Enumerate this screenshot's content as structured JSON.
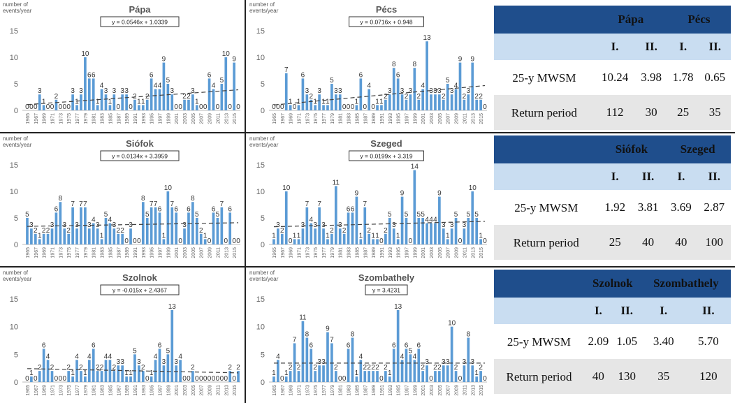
{
  "years": [
    1965,
    1966,
    1967,
    1968,
    1969,
    1970,
    1971,
    1972,
    1973,
    1974,
    1975,
    1976,
    1977,
    1978,
    1979,
    1980,
    1981,
    1982,
    1983,
    1984,
    1985,
    1986,
    1987,
    1988,
    1989,
    1990,
    1991,
    1992,
    1993,
    1994,
    1995,
    1996,
    1997,
    1998,
    1999,
    2000,
    2001,
    2002,
    2003,
    2004,
    2005,
    2006,
    2007,
    2008,
    2009,
    2010,
    2011,
    2012,
    2013,
    2014,
    2015,
    2016
  ],
  "chart_data": [
    {
      "type": "bar",
      "title": "Pápa",
      "ylabel": "number of events/year",
      "trend_label": "y = 0.0546x + 1.0339",
      "trend": {
        "slope": 0.0546,
        "intercept": 1.0339
      },
      "ylim": [
        0,
        15
      ],
      "yticks": [
        0,
        5,
        10,
        15
      ],
      "xtick_step": 2,
      "values": [
        0,
        0,
        0,
        3,
        1,
        0,
        0,
        2,
        0,
        0,
        0,
        3,
        1,
        3,
        10,
        6,
        6,
        1,
        4,
        3,
        1,
        3,
        0,
        3,
        3,
        0,
        2,
        1,
        1,
        2,
        6,
        4,
        4,
        9,
        5,
        3,
        0,
        0,
        2,
        2,
        3,
        1,
        0,
        0,
        6,
        4,
        0,
        5,
        10,
        0,
        9,
        0
      ]
    },
    {
      "type": "bar",
      "title": "Pécs",
      "ylabel": "number of events/year",
      "trend_label": "y = 0.0716x + 0.948",
      "trend": {
        "slope": 0.0716,
        "intercept": 0.948
      },
      "ylim": [
        0,
        15
      ],
      "yticks": [
        0,
        5,
        10,
        15
      ],
      "xtick_step": 2,
      "values": [
        0,
        0,
        0,
        7,
        1,
        0,
        1,
        6,
        3,
        2,
        1,
        3,
        1,
        1,
        5,
        3,
        3,
        0,
        0,
        0,
        1,
        6,
        0,
        4,
        0,
        1,
        1,
        2,
        3,
        8,
        6,
        3,
        2,
        3,
        8,
        2,
        4,
        13,
        3,
        3,
        3,
        2,
        5,
        3,
        4,
        9,
        2,
        3,
        9,
        2,
        2,
        0
      ]
    },
    {
      "type": "bar",
      "title": "Siófok",
      "ylabel": "number of events/year",
      "trend_label": "y = 0.0134x + 3.3959",
      "trend": {
        "slope": 0.0134,
        "intercept": 3.3959
      },
      "ylim": [
        0,
        15
      ],
      "yticks": [
        0,
        5,
        10,
        15
      ],
      "xtick_step": 2,
      "values": [
        5,
        3,
        2,
        1,
        2,
        2,
        3,
        6,
        8,
        3,
        2,
        7,
        3,
        7,
        7,
        3,
        4,
        3,
        1,
        5,
        4,
        3,
        2,
        2,
        0,
        3,
        0,
        0,
        8,
        5,
        7,
        7,
        6,
        1,
        10,
        7,
        6,
        0,
        3,
        6,
        8,
        5,
        2,
        1,
        0,
        6,
        5,
        7,
        0,
        6,
        0,
        0
      ]
    },
    {
      "type": "bar",
      "title": "Szeged",
      "ylabel": "number of events/year",
      "trend_label": "y = 0.0199x + 3.319",
      "trend": {
        "slope": 0.0199,
        "intercept": 3.319
      },
      "ylim": [
        0,
        15
      ],
      "yticks": [
        0,
        5,
        10,
        15
      ],
      "xtick_step": 2,
      "values": [
        1,
        3,
        2,
        10,
        0,
        1,
        1,
        3,
        7,
        4,
        3,
        7,
        3,
        1,
        2,
        11,
        3,
        2,
        6,
        6,
        9,
        1,
        7,
        2,
        1,
        1,
        0,
        2,
        5,
        3,
        1,
        9,
        5,
        0,
        14,
        5,
        5,
        4,
        4,
        4,
        9,
        3,
        1,
        3,
        5,
        0,
        3,
        5,
        10,
        5,
        1,
        0
      ]
    },
    {
      "type": "bar",
      "title": "Szolnok",
      "ylabel": "number of events/year",
      "trend_label": "y = -0.015x + 2.4367",
      "trend": {
        "slope": -0.015,
        "intercept": 2.4367
      },
      "ylim": [
        0,
        15
      ],
      "yticks": [
        0,
        5,
        10,
        15
      ],
      "xtick_step": 2,
      "values": [
        0,
        1,
        0,
        2,
        6,
        4,
        2,
        0,
        0,
        0,
        2,
        1,
        4,
        2,
        1,
        4,
        6,
        2,
        2,
        4,
        4,
        2,
        3,
        3,
        1,
        1,
        5,
        3,
        2,
        0,
        1,
        4,
        6,
        3,
        5,
        13,
        3,
        4,
        0,
        0,
        2,
        0,
        0,
        0,
        0,
        0,
        0,
        0,
        0,
        2,
        0,
        2
      ]
    },
    {
      "type": "bar",
      "title": "Szombathely",
      "ylabel": "number of events/year",
      "trend_label": "y = 3.4231",
      "trend": {
        "slope": 0,
        "intercept": 3.4231
      },
      "ylim": [
        0,
        15
      ],
      "yticks": [
        0,
        5,
        10,
        15
      ],
      "xtick_step": 2,
      "values": [
        1,
        4,
        0,
        1,
        2,
        7,
        2,
        11,
        8,
        6,
        2,
        3,
        3,
        9,
        7,
        2,
        0,
        0,
        6,
        8,
        1,
        4,
        2,
        2,
        2,
        2,
        0,
        2,
        1,
        6,
        13,
        4,
        6,
        5,
        4,
        6,
        2,
        3,
        0,
        2,
        2,
        3,
        3,
        10,
        2,
        0,
        3,
        8,
        3,
        1,
        2,
        0
      ]
    }
  ],
  "tables": [
    {
      "stations": [
        "Pápa",
        "Pécs"
      ],
      "sub": [
        "I.",
        "II.",
        "I.",
        "II."
      ],
      "mwsm_label": "25-y MWSM",
      "mwsm": [
        "10.24",
        "3.98",
        "1.78",
        "0.65"
      ],
      "rp_label": "Return period",
      "rp": [
        "112",
        "30",
        "25",
        "35"
      ]
    },
    {
      "stations": [
        "Siófok",
        "Szeged"
      ],
      "sub": [
        "I.",
        "II.",
        "I.",
        "II."
      ],
      "mwsm_label": "25-y MWSM",
      "mwsm": [
        "1.92",
        "3.81",
        "3.69",
        "2.87"
      ],
      "rp_label": "Return period",
      "rp": [
        "25",
        "40",
        "40",
        "100"
      ]
    },
    {
      "stations": [
        "Szolnok",
        "Szombathely"
      ],
      "sub": [
        "I.",
        "II.",
        "I.",
        "II."
      ],
      "mwsm_label": "25-y MWSM",
      "mwsm": [
        "2.09",
        "1.05",
        "3.40",
        "5.70"
      ],
      "rp_label": "Return period",
      "rp": [
        "40",
        "130",
        "35",
        "120"
      ]
    }
  ],
  "colors": {
    "bar": "#5b9bd5",
    "trend": "#404040",
    "header": "#1f4e8c",
    "subheader": "#c9ddf1",
    "row_gray": "#e6e6e6"
  }
}
